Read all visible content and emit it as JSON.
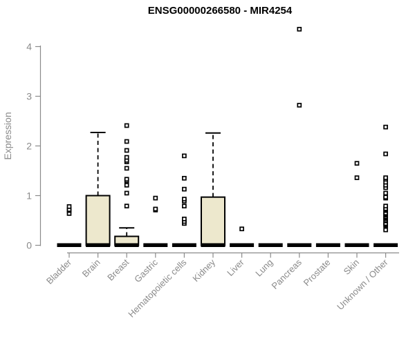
{
  "chart_data": {
    "type": "boxplot",
    "title": "ENSG00000266580 - MIR4254",
    "xlabel": "",
    "ylabel": "Expression",
    "ylim": [
      0,
      4.45
    ],
    "yticks": [
      0,
      1,
      2,
      3,
      4
    ],
    "grid": false,
    "legend": false,
    "categories": [
      "Bladder",
      "Brain",
      "Breast",
      "Gastric",
      "Hematopoietic cells",
      "Kidney",
      "Liver",
      "Lung",
      "Pancreas",
      "Prostate",
      "Skin",
      "Unknown / Other"
    ],
    "series": [
      {
        "name": "Bladder",
        "q1": 0,
        "median": 0,
        "q3": 0,
        "whisker_low": 0,
        "whisker_high": 0,
        "outliers": [
          0.64,
          0.7,
          0.72,
          0.78
        ]
      },
      {
        "name": "Brain",
        "q1": 0,
        "median": 0,
        "q3": 1.0,
        "whisker_low": 0,
        "whisker_high": 2.27,
        "outliers": []
      },
      {
        "name": "Breast",
        "q1": 0,
        "median": 0,
        "q3": 0.18,
        "whisker_low": 0,
        "whisker_high": 0.35,
        "outliers": [
          0.79,
          1.05,
          1.21,
          1.3,
          1.33,
          1.55,
          1.68,
          1.71,
          1.77,
          1.91,
          2.09,
          2.41
        ]
      },
      {
        "name": "Gastric",
        "q1": 0,
        "median": 0,
        "q3": 0,
        "whisker_low": 0,
        "whisker_high": 0,
        "outliers": [
          0.71,
          0.73,
          0.95
        ]
      },
      {
        "name": "Hematopoietic cells",
        "q1": 0,
        "median": 0,
        "q3": 0,
        "whisker_low": 0,
        "whisker_high": 0,
        "outliers": [
          0.44,
          0.48,
          0.53,
          0.79,
          0.89,
          0.93,
          1.13,
          1.35,
          1.8
        ]
      },
      {
        "name": "Kidney",
        "q1": 0,
        "median": 0,
        "q3": 0.97,
        "whisker_low": 0,
        "whisker_high": 2.26,
        "outliers": []
      },
      {
        "name": "Liver",
        "q1": 0,
        "median": 0,
        "q3": 0,
        "whisker_low": 0,
        "whisker_high": 0,
        "outliers": [
          0.33
        ]
      },
      {
        "name": "Lung",
        "q1": 0,
        "median": 0,
        "q3": 0,
        "whisker_low": 0,
        "whisker_high": 0,
        "outliers": []
      },
      {
        "name": "Pancreas",
        "q1": 0,
        "median": 0,
        "q3": 0,
        "whisker_low": 0,
        "whisker_high": 0,
        "outliers": [
          2.82,
          4.35
        ]
      },
      {
        "name": "Prostate",
        "q1": 0,
        "median": 0,
        "q3": 0,
        "whisker_low": 0,
        "whisker_high": 0,
        "outliers": []
      },
      {
        "name": "Skin",
        "q1": 0,
        "median": 0,
        "q3": 0,
        "whisker_low": 0,
        "whisker_high": 0,
        "outliers": [
          1.36,
          1.65
        ]
      },
      {
        "name": "Unknown / Other",
        "q1": 0,
        "median": 0,
        "q3": 0,
        "whisker_low": 0,
        "whisker_high": 0,
        "outliers": [
          0.31,
          0.4,
          0.42,
          0.44,
          0.49,
          0.51,
          0.54,
          0.56,
          0.58,
          0.61,
          0.63,
          0.65,
          0.7,
          0.72,
          0.74,
          0.79,
          0.95,
          0.97,
          1.05,
          1.16,
          1.21,
          1.27,
          1.33,
          1.36,
          1.84,
          2.38
        ]
      }
    ],
    "colors": {
      "box_fill": "#EDE8CD",
      "box_stroke": "#000000",
      "median": "#000000",
      "outlier_fill": "#FFFFFF",
      "axis": "#8A8A8A",
      "title": "#000000",
      "background": "#FFFFFF"
    }
  }
}
